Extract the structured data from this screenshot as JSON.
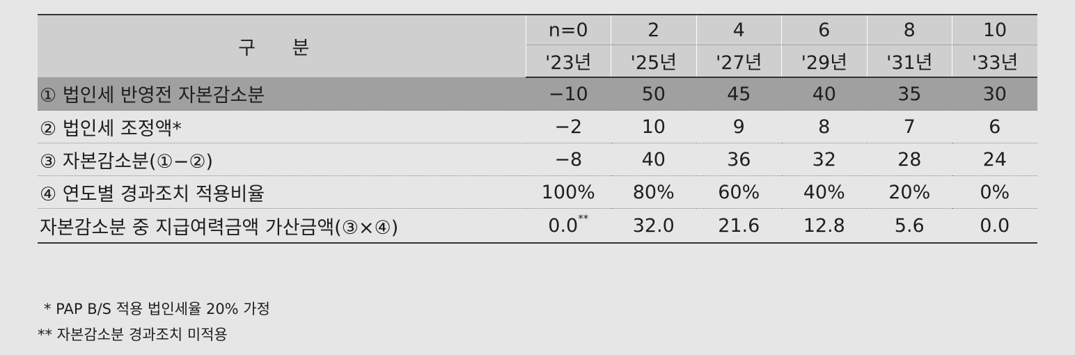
{
  "table": {
    "header_label": "구 분",
    "periods": [
      "n=0",
      "2",
      "4",
      "6",
      "8",
      "10"
    ],
    "years": [
      "'23년",
      "'25년",
      "'27년",
      "'29년",
      "'31년",
      "'33년"
    ],
    "rows": [
      {
        "label": "① 법인세 반영전 자본감소분",
        "values": [
          "−10",
          "50",
          "45",
          "40",
          "35",
          "30"
        ]
      },
      {
        "label": "② 법인세 조정액*",
        "values": [
          "−2",
          "10",
          "9",
          "8",
          "7",
          "6"
        ]
      },
      {
        "label": "③ 자본감소분(①−②)",
        "values": [
          "−8",
          "40",
          "36",
          "32",
          "28",
          "24"
        ]
      },
      {
        "label": "④ 연도별 경과조치 적용비율",
        "values": [
          "100%",
          "80%",
          "60%",
          "40%",
          "20%",
          "0%"
        ]
      },
      {
        "label": "자본감소분 중 지급여력금액 가산금액(③×④)",
        "values": [
          "0.0",
          "32.0",
          "21.6",
          "12.8",
          "5.6",
          "0.0"
        ],
        "first_value_sup": "**"
      }
    ]
  },
  "notes": [
    "* PAP B/S 적용 법인세율 20% 가정",
    "** 자본감소분 경과조치 미적용"
  ],
  "colors": {
    "background": "#e6e6e6",
    "header_bg": "#cfcfcf",
    "highlight_row": "#a0a0a0"
  }
}
